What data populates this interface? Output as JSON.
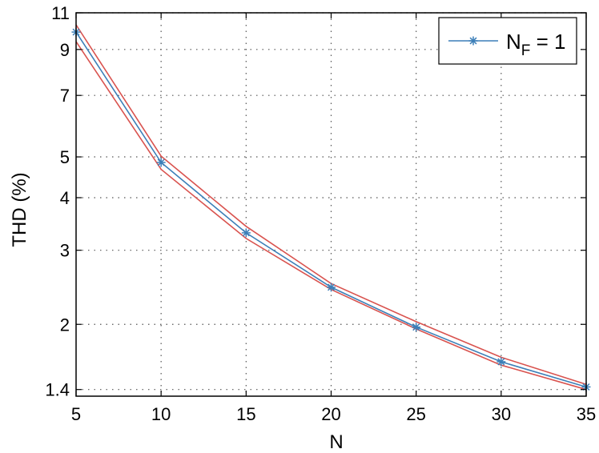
{
  "chart_data": {
    "type": "line",
    "title": "",
    "xlabel": "N",
    "ylabel": "THD (%)",
    "xlim": [
      5,
      35
    ],
    "ylim": [
      1.35,
      11
    ],
    "yscale": "log",
    "grid": true,
    "legend_position": "top-right",
    "x_ticks": [
      "5",
      "10",
      "15",
      "20",
      "25",
      "30",
      "35"
    ],
    "y_ticks": [
      "1.4",
      "2",
      "3",
      "4",
      "5",
      "7",
      "9",
      "11"
    ],
    "x": [
      5,
      10,
      15,
      20,
      25,
      30,
      35
    ],
    "series": [
      {
        "name": "N_F = 1",
        "legend_main": "N",
        "legend_sub": "F",
        "legend_rest": " = 1",
        "color": "#3c7fb8",
        "marker": "asterisk",
        "values": [
          9.9,
          4.85,
          3.3,
          2.45,
          1.97,
          1.63,
          1.42
        ]
      },
      {
        "color": "#d9534f",
        "values": [
          10.3,
          5.02,
          3.42,
          2.5,
          2.03,
          1.67,
          1.44
        ]
      },
      {
        "color": "#d9534f",
        "values": [
          9.4,
          4.67,
          3.2,
          2.42,
          1.95,
          1.6,
          1.4
        ]
      }
    ]
  }
}
